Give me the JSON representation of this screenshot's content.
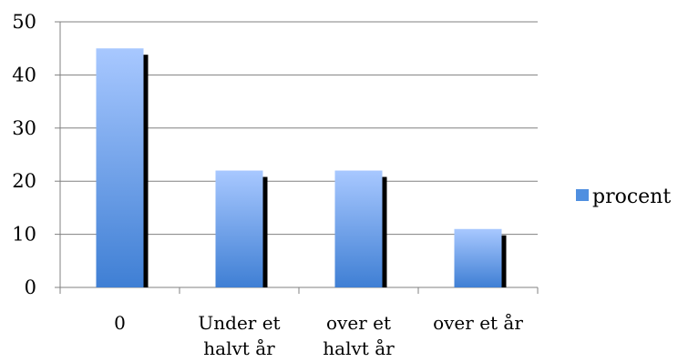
{
  "chart_data": {
    "type": "bar",
    "categories": [
      [
        "0"
      ],
      [
        "Under et",
        "halvt år"
      ],
      [
        "over et",
        "halvt år"
      ],
      [
        "over et år"
      ]
    ],
    "series": [
      {
        "name": "procent",
        "values": [
          45,
          22,
          22,
          11
        ]
      }
    ],
    "ylim": [
      0,
      50
    ],
    "yticks": [
      0,
      10,
      20,
      30,
      40,
      50
    ],
    "grid": true,
    "legend_position": "right",
    "colors": {
      "bar_top": "#a8c8ff",
      "bar_bottom": "#3f7fd4",
      "shadow": "#000000",
      "gridline": "#808080",
      "axis": "#808080",
      "legend_swatch": "#4f8fe0"
    }
  }
}
